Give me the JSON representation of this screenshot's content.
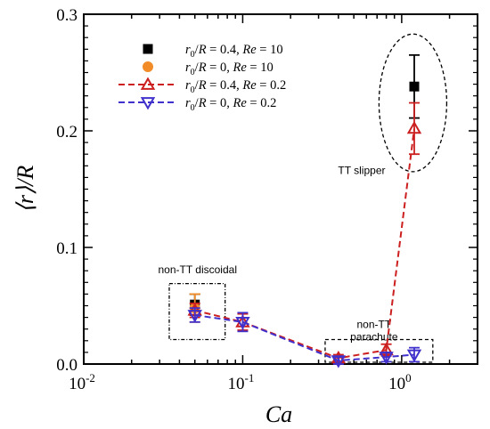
{
  "chart_data": {
    "type": "scatter",
    "xscale": "log",
    "xlim": [
      0.01,
      3
    ],
    "ylim": [
      0,
      0.3
    ],
    "x_ticks": [
      {
        "value": 0.01,
        "base": "10",
        "exp": "-2"
      },
      {
        "value": 0.1,
        "base": "10",
        "exp": "-1"
      },
      {
        "value": 1,
        "base": "10",
        "exp": "0"
      }
    ],
    "y_ticks": [
      {
        "value": 0,
        "label": "0.0"
      },
      {
        "value": 0.1,
        "label": "0.1"
      },
      {
        "value": 0.2,
        "label": "0.2"
      },
      {
        "value": 0.3,
        "label": "0.3"
      }
    ],
    "xlabel": "Ca",
    "ylabel": "⟨r⟩/R",
    "legend_position": "top-left",
    "series": [
      {
        "name": "r0/R = 0.4, Re = 10",
        "legend_parts": [
          [
            "r",
            "i"
          ],
          [
            "0",
            "sub"
          ],
          [
            "/",
            "n"
          ],
          [
            "R",
            "i"
          ],
          [
            " = 0.4, ",
            "n"
          ],
          [
            "Re",
            "i"
          ],
          [
            " = 10",
            "n"
          ]
        ],
        "color": "#000000",
        "marker": "square",
        "filled": true,
        "line": false,
        "points": [
          {
            "x": 0.05,
            "y": 0.051,
            "err": 0.009
          },
          {
            "x": 1.2,
            "y": 0.238,
            "err": 0.027
          }
        ]
      },
      {
        "name": "r0/R = 0, Re = 10",
        "legend_parts": [
          [
            "r",
            "i"
          ],
          [
            "0",
            "sub"
          ],
          [
            "/",
            "n"
          ],
          [
            "R",
            "i"
          ],
          [
            " = 0, ",
            "n"
          ],
          [
            "Re",
            "i"
          ],
          [
            " = 10",
            "n"
          ]
        ],
        "color": "#f28c28",
        "marker": "circle",
        "filled": true,
        "line": false,
        "points": [
          {
            "x": 0.05,
            "y": 0.048,
            "err": 0.012
          }
        ]
      },
      {
        "name": "r0/R = 0.4, Re = 0.2",
        "legend_parts": [
          [
            "r",
            "i"
          ],
          [
            "0",
            "sub"
          ],
          [
            "/",
            "n"
          ],
          [
            "R",
            "i"
          ],
          [
            " = 0.4, ",
            "n"
          ],
          [
            "Re",
            "i"
          ],
          [
            " = 0.2",
            "n"
          ]
        ],
        "color": "#cc1f1f",
        "marker": "triangle-up",
        "filled": false,
        "line": true,
        "points": [
          {
            "x": 0.05,
            "y": 0.046,
            "err": 0.006
          },
          {
            "x": 0.1,
            "y": 0.036,
            "err": 0.007
          },
          {
            "x": 0.4,
            "y": 0.005,
            "err": 0.003
          },
          {
            "x": 0.8,
            "y": 0.012,
            "err": 0.005
          },
          {
            "x": 1.2,
            "y": 0.202,
            "err": 0.022
          }
        ]
      },
      {
        "name": "r0/R = 0, Re = 0.2",
        "legend_parts": [
          [
            "r",
            "i"
          ],
          [
            "0",
            "sub"
          ],
          [
            "/",
            "n"
          ],
          [
            "R",
            "i"
          ],
          [
            " = 0, ",
            "n"
          ],
          [
            "Re",
            "i"
          ],
          [
            " = 0.2",
            "n"
          ]
        ],
        "color": "#4030cc",
        "marker": "triangle-down",
        "filled": false,
        "line": true,
        "points": [
          {
            "x": 0.05,
            "y": 0.042,
            "err": 0.006
          },
          {
            "x": 0.1,
            "y": 0.036,
            "err": 0.008
          },
          {
            "x": 0.4,
            "y": 0.003,
            "err": 0.003
          },
          {
            "x": 0.8,
            "y": 0.006,
            "err": 0.004
          },
          {
            "x": 1.2,
            "y": 0.008,
            "err": 0.006
          }
        ]
      }
    ],
    "annotations": [
      {
        "id": "ann-tt-slipper",
        "shape": "ellipse",
        "dash": "dashed",
        "region": {
          "x": [
            0.72,
            1.92
          ],
          "y": [
            0.165,
            0.283
          ]
        },
        "lines": [
          "TT slipper"
        ],
        "text_at": {
          "x": 0.56,
          "y": 0.163
        }
      },
      {
        "id": "ann-non-tt-discoidal",
        "shape": "rect",
        "dash": "dashdot",
        "region": {
          "x": [
            0.0345,
            0.0775
          ],
          "y": [
            0.021,
            0.069
          ]
        },
        "lines": [
          "non-TT discoidal"
        ],
        "text_at": {
          "x": 0.052,
          "y": 0.078
        }
      },
      {
        "id": "ann-non-tt-parachute",
        "shape": "rect",
        "dash": "dashed",
        "region": {
          "x": [
            0.33,
            1.57
          ],
          "y": [
            0.0015,
            0.021
          ]
        },
        "lines": [
          "non-TT",
          "parachute"
        ],
        "text_at": {
          "x": 0.67,
          "y": 0.031
        }
      }
    ]
  }
}
